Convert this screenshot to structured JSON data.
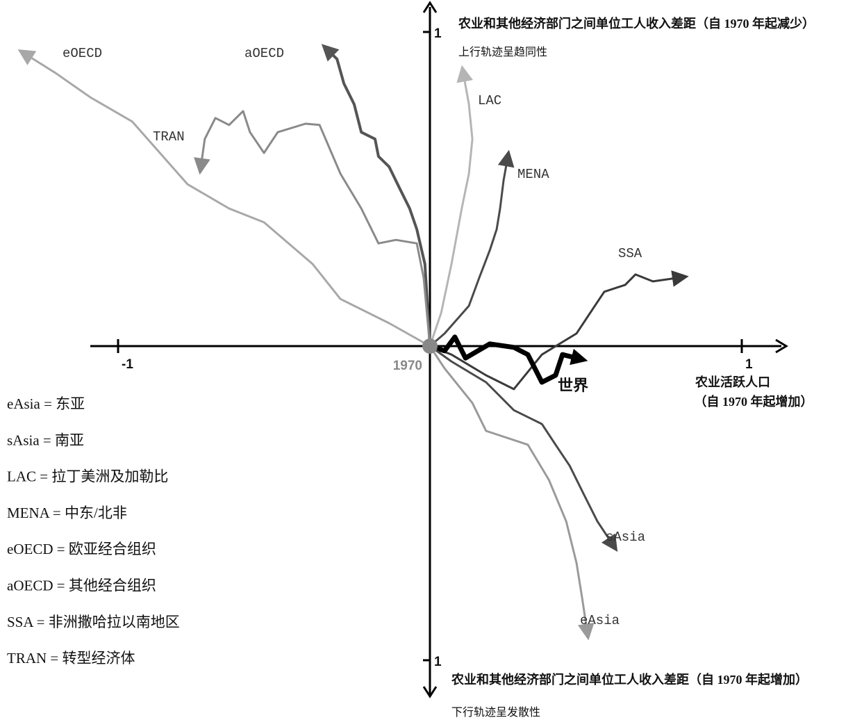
{
  "chart_data": {
    "type": "line",
    "y_label_top": "农业和其他经济部门之间单位工人收入差距（自 1970 年起减少）",
    "y_note_top": "上行轨迹呈趋同性",
    "y_label_bottom": "农业和其他经济部门之间单位工人收入差距（自 1970 年起增加）",
    "y_note_bottom": "下行轨迹呈发散性",
    "x_label": [
      "农业活跃人口",
      "（自 1970 年起增加）"
    ],
    "origin_label": "1970",
    "xlim": [
      -1.3,
      1.3
    ],
    "ylim": [
      -1.15,
      1.1
    ],
    "xticks": [
      {
        "value": -1,
        "label": "-1"
      },
      1
    ],
    "yticks": [
      {
        "value": -1,
        "label": "1"
      },
      1
    ],
    "annotations": [
      "eAsia = 东亚",
      "sAsia = 南亚",
      "LAC = 拉丁美洲及加勒比",
      "MENA = 中东/北非",
      "eOECD = 欧亚经合组织",
      "aOECD = 其他经合组织",
      "SSA = 非洲撒哈拉以南地区",
      "TRAN = 转型经济体"
    ],
    "series": [
      {
        "name": "eOECD",
        "color": "#a8a8a8",
        "x": [
          0,
          -0.131,
          -0.287,
          -0.376,
          -0.532,
          -0.644,
          -0.777,
          -0.866,
          -0.955,
          -1.089,
          -1.2,
          -1.29
        ],
        "values": [
          0,
          0.073,
          0.15,
          0.261,
          0.394,
          0.438,
          0.515,
          0.615,
          0.715,
          0.792,
          0.869,
          0.925
        ]
      },
      {
        "name": "aOECD",
        "color": "#555555",
        "x": [
          0,
          -0.016,
          -0.042,
          -0.065,
          -0.098,
          -0.131,
          -0.165,
          -0.176,
          -0.22,
          -0.243,
          -0.276,
          -0.298,
          -0.321
        ],
        "values": [
          0,
          0.261,
          0.372,
          0.438,
          0.504,
          0.571,
          0.604,
          0.659,
          0.681,
          0.77,
          0.836,
          0.914,
          0.936
        ]
      },
      {
        "name": "TRAN",
        "color": "#8a8a8a",
        "x": [
          0,
          -0.02,
          -0.042,
          -0.109,
          -0.165,
          -0.22,
          -0.287,
          -0.354,
          -0.399,
          -0.488,
          -0.532,
          -0.577,
          -0.599,
          -0.644,
          -0.688,
          -0.722,
          -0.733
        ],
        "values": [
          0,
          0.217,
          0.327,
          0.338,
          0.327,
          0.438,
          0.549,
          0.704,
          0.708,
          0.681,
          0.615,
          0.681,
          0.748,
          0.704,
          0.726,
          0.659,
          0.582
        ]
      },
      {
        "name": "LAC",
        "color": "#b5b5b5",
        "x": [
          0,
          0.036,
          0.069,
          0.102,
          0.125,
          0.136,
          0.125,
          0.109
        ],
        "values": [
          0,
          0.106,
          0.261,
          0.438,
          0.549,
          0.659,
          0.77,
          0.858
        ]
      },
      {
        "name": "MENA",
        "color": "#4a4a4a",
        "x": [
          0,
          0.047,
          0.125,
          0.158,
          0.192,
          0.214,
          0.225,
          0.236,
          0.247
        ],
        "values": [
          0,
          0.04,
          0.128,
          0.217,
          0.305,
          0.372,
          0.438,
          0.527,
          0.588
        ]
      },
      {
        "name": "SSA",
        "color": "#3a3a3a",
        "x": [
          0,
          0.069,
          0.18,
          0.269,
          0.359,
          0.47,
          0.514,
          0.559,
          0.626,
          0.659,
          0.715,
          0.793
        ],
        "values": [
          0,
          -0.027,
          -0.093,
          -0.137,
          -0.027,
          0.04,
          0.106,
          0.173,
          0.195,
          0.228,
          0.206,
          0.217
        ]
      },
      {
        "name": "世界",
        "color": "#000000",
        "x": [
          0,
          0.047,
          0.08,
          0.114,
          0.192,
          0.269,
          0.314,
          0.359,
          0.403,
          0.425,
          0.47
        ],
        "values": [
          0,
          -0.015,
          0.029,
          -0.038,
          0.007,
          -0.004,
          -0.027,
          -0.115,
          -0.093,
          -0.027,
          -0.038
        ]
      },
      {
        "name": "sAsia",
        "color": "#4a4a4a",
        "x": [
          0,
          0.069,
          0.18,
          0.269,
          0.359,
          0.403,
          0.448,
          0.492,
          0.537,
          0.581
        ],
        "values": [
          0,
          -0.049,
          -0.115,
          -0.204,
          -0.248,
          -0.314,
          -0.381,
          -0.469,
          -0.558,
          -0.624
        ]
      },
      {
        "name": "eAsia",
        "color": "#9a9a9a",
        "x": [
          0,
          0.047,
          0.136,
          0.18,
          0.314,
          0.381,
          0.437,
          0.47,
          0.488,
          0.503
        ],
        "values": [
          0,
          -0.071,
          -0.181,
          -0.27,
          -0.314,
          -0.425,
          -0.558,
          -0.69,
          -0.801,
          -0.9
        ]
      }
    ]
  }
}
